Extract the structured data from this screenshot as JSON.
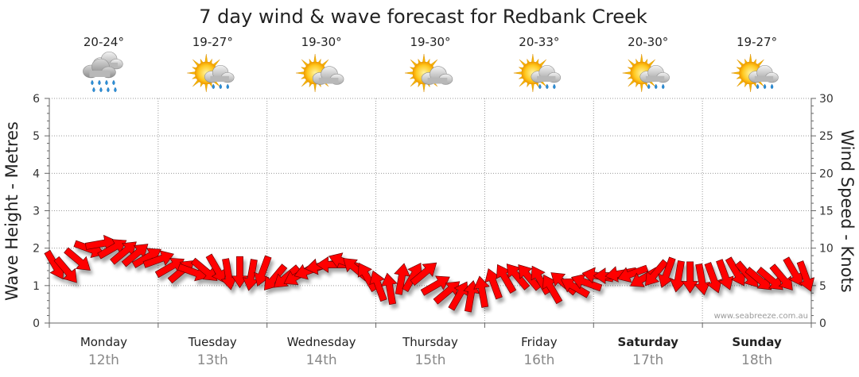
{
  "chart_data": {
    "type": "line",
    "title": "7 day wind & wave forecast for Redbank Creek",
    "left_axis": {
      "label": "Wave Height - Metres",
      "ylim": [
        0,
        6
      ],
      "ticks": [
        "0",
        "1",
        "2",
        "3",
        "4",
        "5",
        "6"
      ]
    },
    "right_axis": {
      "label": "Wind Speed - Knots",
      "ylim": [
        0,
        30
      ],
      "ticks": [
        "0",
        "5",
        "10",
        "15",
        "20",
        "25",
        "30"
      ]
    },
    "grid": true,
    "days": [
      {
        "name": "Monday",
        "date": "12th",
        "temp": "20-24°",
        "icon": "rain-icon",
        "bold": false
      },
      {
        "name": "Tuesday",
        "date": "13th",
        "temp": "19-27°",
        "icon": "sun-cloud-rain-icon",
        "bold": false
      },
      {
        "name": "Wednesday",
        "date": "14th",
        "temp": "19-30°",
        "icon": "sun-cloud-icon",
        "bold": false
      },
      {
        "name": "Thursday",
        "date": "15th",
        "temp": "19-30°",
        "icon": "sun-cloud-icon",
        "bold": false
      },
      {
        "name": "Friday",
        "date": "16th",
        "temp": "20-33°",
        "icon": "sun-cloud-rain-icon",
        "bold": false
      },
      {
        "name": "Saturday",
        "date": "17th",
        "temp": "20-30°",
        "icon": "sun-cloud-rain-icon",
        "bold": true
      },
      {
        "name": "Sunday",
        "date": "18th",
        "temp": "19-27°",
        "icon": "sun-cloud-rain-icon",
        "bold": true
      }
    ],
    "series": [
      {
        "name": "Wind Speed",
        "units": "knots",
        "color": "#ff0000",
        "values": [
          7.7,
          7.0,
          8.4,
          9.9,
          10.6,
          10.0,
          9.5,
          9.2,
          8.8,
          8.5,
          7.5,
          7.0,
          6.8,
          7.0,
          7.2,
          6.5,
          6.8,
          6.4,
          6.9,
          6.0,
          6.1,
          6.3,
          7.0,
          7.6,
          7.8,
          8.2,
          7.3,
          6.2,
          5.0,
          4.6,
          5.9,
          6.2,
          6.7,
          5.1,
          4.2,
          3.7,
          3.6,
          4.2,
          5.3,
          6.0,
          6.3,
          6.2,
          5.8,
          4.6,
          5.4,
          4.8,
          5.4,
          6.3,
          6.3,
          6.6,
          6.6,
          6.0,
          6.6,
          6.7,
          6.2,
          6.1,
          5.8,
          6.0,
          6.4,
          6.8,
          6.4,
          5.8,
          5.8,
          6.0,
          6.8,
          6.2
        ],
        "directions_deg": [
          60,
          50,
          40,
          20,
          350,
          330,
          320,
          320,
          330,
          340,
          330,
          320,
          20,
          40,
          60,
          80,
          90,
          100,
          110,
          130,
          140,
          150,
          160,
          170,
          180,
          200,
          220,
          240,
          250,
          260,
          280,
          300,
          320,
          330,
          320,
          300,
          280,
          260,
          250,
          240,
          230,
          230,
          240,
          240,
          220,
          210,
          200,
          190,
          180,
          170,
          160,
          150,
          130,
          110,
          100,
          90,
          80,
          70,
          70,
          60,
          50,
          40,
          40,
          50,
          60,
          70
        ]
      }
    ],
    "x_range": [
      0,
      7
    ]
  },
  "watermark": "www.seabreeze.com.au"
}
